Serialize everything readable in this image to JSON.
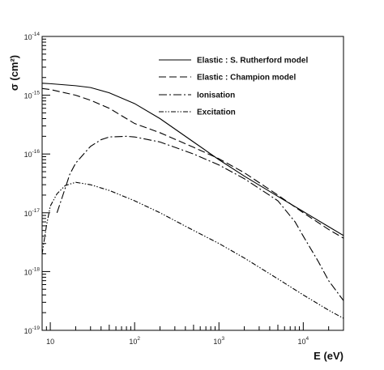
{
  "chart_data": {
    "type": "line",
    "xlabel": "E (eV)",
    "ylabel": "σ (cm²)",
    "xscale": "log",
    "yscale": "log",
    "xlim": [
      8,
      30000
    ],
    "ylim": [
      1e-19,
      1e-14
    ],
    "x_tick_labels": [
      {
        "value": 10,
        "base": "10",
        "exp": ""
      },
      {
        "value": 100,
        "base": "10",
        "exp": "2"
      },
      {
        "value": 1000,
        "base": "10",
        "exp": "3"
      },
      {
        "value": 10000,
        "base": "10",
        "exp": "4"
      }
    ],
    "y_tick_labels": [
      {
        "value": 1e-19,
        "base": "10",
        "exp": "-19"
      },
      {
        "value": 1e-18,
        "base": "10",
        "exp": "-18"
      },
      {
        "value": 1e-17,
        "base": "10",
        "exp": "-17"
      },
      {
        "value": 1e-16,
        "base": "10",
        "exp": "-16"
      },
      {
        "value": 1e-15,
        "base": "10",
        "exp": "-15"
      },
      {
        "value": 1e-14,
        "base": "10",
        "exp": "-14"
      }
    ],
    "grid": false,
    "legend_position": "top-right",
    "series": [
      {
        "name": "Elastic : S. Rutherford model",
        "dash": "solid",
        "points": [
          [
            8,
            1.6e-15
          ],
          [
            10,
            1.57e-15
          ],
          [
            20,
            1.45e-15
          ],
          [
            30,
            1.35e-15
          ],
          [
            50,
            1.1e-15
          ],
          [
            100,
            7.2e-16
          ],
          [
            200,
            4e-16
          ],
          [
            500,
            1.6e-16
          ],
          [
            1000,
            8e-17
          ],
          [
            2000,
            4.2e-17
          ],
          [
            5000,
            1.9e-17
          ],
          [
            10000,
            1.05e-17
          ],
          [
            20000,
            5.8e-18
          ],
          [
            30000,
            4.1e-18
          ]
        ]
      },
      {
        "name": "Elastic : Champion model",
        "dash": "long-dash",
        "points": [
          [
            8,
            1.3e-15
          ],
          [
            10,
            1.25e-15
          ],
          [
            20,
            1e-15
          ],
          [
            30,
            8.2e-16
          ],
          [
            50,
            6e-16
          ],
          [
            100,
            3.3e-16
          ],
          [
            200,
            2.3e-16
          ],
          [
            500,
            1.3e-16
          ],
          [
            1000,
            8.3e-17
          ],
          [
            2000,
            4.8e-17
          ],
          [
            5000,
            2e-17
          ],
          [
            10000,
            1e-17
          ],
          [
            20000,
            5.2e-18
          ],
          [
            30000,
            3.7e-18
          ]
        ]
      },
      {
        "name": "Ionisation",
        "dash": "dash-dot",
        "points": [
          [
            12,
            1e-17
          ],
          [
            13,
            1.4e-17
          ],
          [
            15,
            2.6e-17
          ],
          [
            17,
            4.5e-17
          ],
          [
            20,
            7e-17
          ],
          [
            30,
            1.35e-16
          ],
          [
            40,
            1.75e-16
          ],
          [
            50,
            1.95e-16
          ],
          [
            80,
            2e-16
          ],
          [
            100,
            1.95e-16
          ],
          [
            200,
            1.6e-16
          ],
          [
            500,
            1e-16
          ],
          [
            1000,
            6.5e-17
          ],
          [
            2000,
            3.8e-17
          ],
          [
            5000,
            1.6e-17
          ],
          [
            8000,
            7e-18
          ],
          [
            10000,
            4e-18
          ],
          [
            15000,
            1.5e-18
          ],
          [
            20000,
            7e-19
          ],
          [
            30000,
            3.2e-19
          ]
        ]
      },
      {
        "name": "Excitation",
        "dash": "dash-dot-dot",
        "points": [
          [
            8,
            2e-18
          ],
          [
            9,
            6e-18
          ],
          [
            10,
            1.3e-17
          ],
          [
            12,
            2.1e-17
          ],
          [
            15,
            2.9e-17
          ],
          [
            20,
            3.3e-17
          ],
          [
            30,
            3e-17
          ],
          [
            50,
            2.4e-17
          ],
          [
            100,
            1.6e-17
          ],
          [
            200,
            1e-17
          ],
          [
            500,
            5e-18
          ],
          [
            1000,
            3e-18
          ],
          [
            2000,
            1.7e-18
          ],
          [
            5000,
            7.5e-19
          ],
          [
            10000,
            4e-19
          ],
          [
            20000,
            2.2e-19
          ],
          [
            30000,
            1.6e-19
          ]
        ]
      }
    ]
  }
}
